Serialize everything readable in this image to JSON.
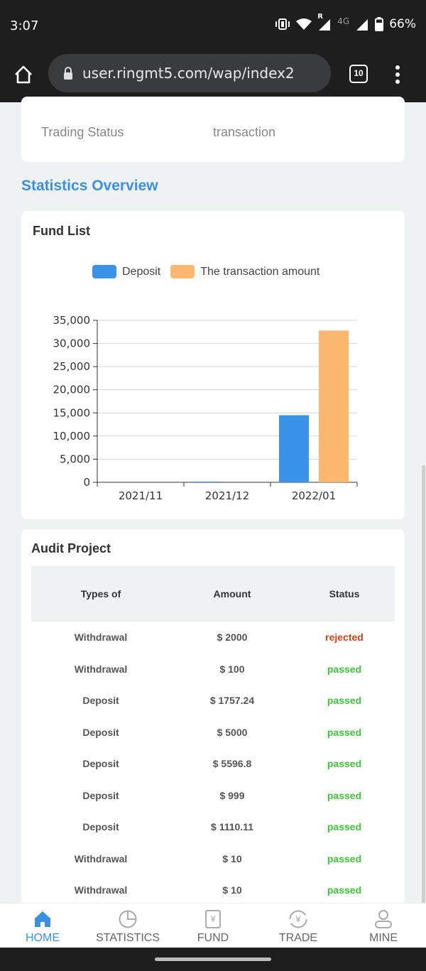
{
  "status_bar": {
    "time": "3:07",
    "network": "4G",
    "roaming": "R",
    "battery": "66%"
  },
  "browser": {
    "url": "user.ringmt5.com/wap/index2",
    "tab_count": "10"
  },
  "trading": {
    "label": "Trading Status",
    "value": "transaction"
  },
  "section_title": "Statistics Overview",
  "fund_list": {
    "title": "Fund List"
  },
  "chart_data": {
    "type": "bar",
    "categories": [
      "2021/11",
      "2021/12",
      "2022/01"
    ],
    "series": [
      {
        "name": "Deposit",
        "color": "#3a92e9",
        "values": [
          0,
          150,
          14500
        ]
      },
      {
        "name": "The transaction amount",
        "color": "#fdb870",
        "values": [
          0,
          0,
          32800
        ]
      }
    ],
    "yticks": [
      "0",
      "5,000",
      "10,000",
      "15,000",
      "20,000",
      "25,000",
      "30,000",
      "35,000"
    ],
    "ylim": [
      0,
      35000
    ],
    "grid": true,
    "legend": "top"
  },
  "audit": {
    "title": "Audit Project",
    "headers": {
      "type": "Types of",
      "amount": "Amount",
      "status": "Status"
    },
    "rows": [
      {
        "type": "Withdrawal",
        "amount": "$ 2000",
        "status": "rejected"
      },
      {
        "type": "Withdrawal",
        "amount": "$ 100",
        "status": "passed"
      },
      {
        "type": "Deposit",
        "amount": "$ 1757.24",
        "status": "passed"
      },
      {
        "type": "Deposit",
        "amount": "$ 5000",
        "status": "passed"
      },
      {
        "type": "Deposit",
        "amount": "$ 5596.8",
        "status": "passed"
      },
      {
        "type": "Deposit",
        "amount": "$ 999",
        "status": "passed"
      },
      {
        "type": "Deposit",
        "amount": "$ 1110.11",
        "status": "passed"
      },
      {
        "type": "Withdrawal",
        "amount": "$ 10",
        "status": "passed"
      },
      {
        "type": "Withdrawal",
        "amount": "$ 10",
        "status": "passed"
      }
    ]
  },
  "nav": [
    {
      "label": "HOME",
      "icon": "home-icon",
      "active": true
    },
    {
      "label": "STATISTICS",
      "icon": "pie-chart-icon",
      "active": false
    },
    {
      "label": "FUND",
      "icon": "yen-document-icon",
      "active": false
    },
    {
      "label": "TRADE",
      "icon": "yen-exchange-icon",
      "active": false
    },
    {
      "label": "MINE",
      "icon": "user-icon",
      "active": false
    }
  ]
}
